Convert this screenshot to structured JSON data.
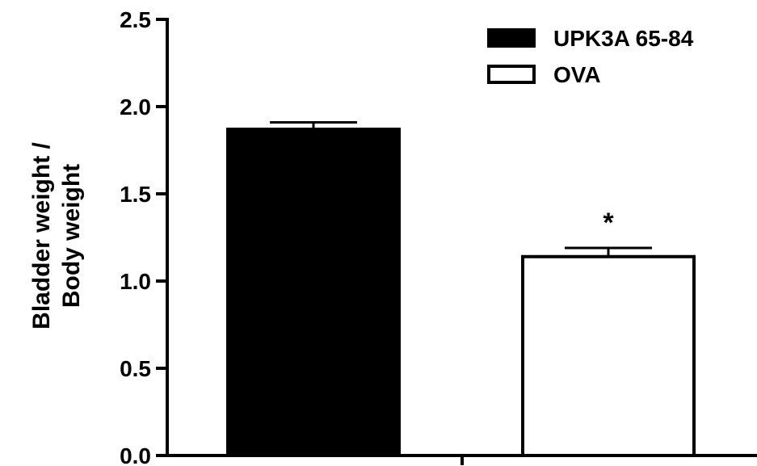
{
  "chart_data": {
    "type": "bar",
    "title": "",
    "xlabel": "",
    "ylabel_lines": [
      "Bladder weight /",
      "Body weight"
    ],
    "ylim": [
      0,
      2.5
    ],
    "yticks": [
      "0.0",
      "0.5",
      "1.0",
      "1.5",
      "2.0",
      "2.5"
    ],
    "ytick_values": [
      0,
      0.5,
      1.0,
      1.5,
      2.0,
      2.5
    ],
    "grid": false,
    "legend_position": "top-right",
    "series": [
      {
        "name": "UPK3A 65-84",
        "value": 1.87,
        "error": 0.04,
        "fill": "#000000",
        "annotation": ""
      },
      {
        "name": "OVA",
        "value": 1.14,
        "error": 0.05,
        "fill": "#ffffff",
        "annotation": "*"
      }
    ]
  }
}
